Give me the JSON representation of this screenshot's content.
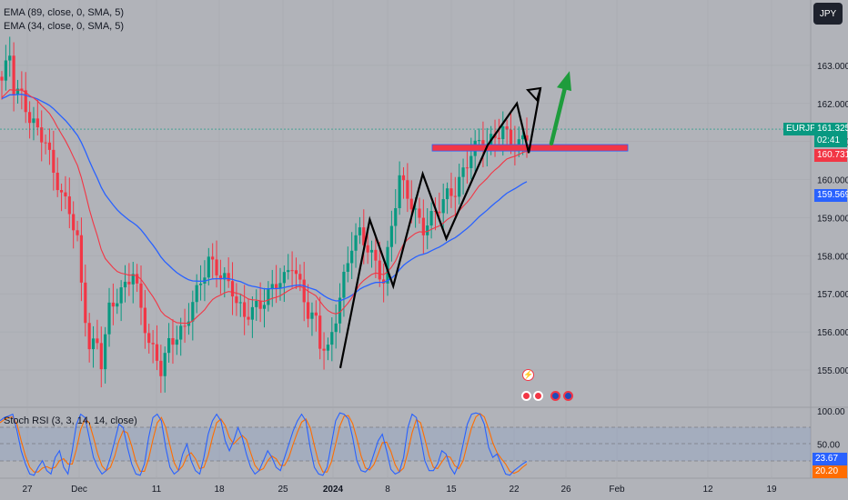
{
  "chart_data": {
    "type": "candlestick",
    "symbol": "EURJPY",
    "currency": "JPY",
    "indicators": {
      "ema_slow": {
        "label": "EMA (89, close, 0, SMA, 5)",
        "color": "#2962ff"
      },
      "ema_fast": {
        "label": "EMA (34, close, 0, SMA, 5)",
        "color": "#f23645"
      }
    },
    "price_axis": {
      "ticks": [
        "163.000",
        "162.000",
        "161.000",
        "160.000",
        "159.000",
        "158.000",
        "157.000",
        "156.000",
        "155.000"
      ],
      "range": [
        154.0,
        164.3
      ]
    },
    "time_axis": {
      "ticks": [
        "27",
        "Dec",
        "11",
        "18",
        "25",
        "2024",
        "8",
        "15",
        "22",
        "26",
        "Feb",
        "12",
        "19"
      ]
    },
    "price_labels": {
      "last": {
        "symbol": "EURJPY",
        "value": "161.325",
        "countdown": "02:41",
        "color": "#089981"
      },
      "ema_fast": {
        "value": "160.731",
        "color": "#f23645"
      },
      "ema_slow": {
        "value": "159.569",
        "color": "#2962ff"
      }
    },
    "resistance_zone": {
      "low": 160.75,
      "high": 160.92,
      "color": "#f23645"
    },
    "zigzag": [
      {
        "t": 0.0,
        "p": 155.05
      },
      {
        "t": 0.1,
        "p": 158.95
      },
      {
        "t": 0.18,
        "p": 157.2
      },
      {
        "t": 0.28,
        "p": 160.15
      },
      {
        "t": 0.36,
        "p": 158.45
      },
      {
        "t": 0.5,
        "p": 160.9
      },
      {
        "t": 0.6,
        "p": 162.0
      },
      {
        "t": 0.64,
        "p": 160.7
      },
      {
        "t": 0.68,
        "p": 162.4
      }
    ],
    "forecast_arrow": {
      "from": 160.95,
      "to": 162.85,
      "color": "#1e9c3c"
    },
    "candle_trend": [
      [
        0,
        162.6
      ],
      [
        2,
        163.3
      ],
      [
        3,
        162.4
      ],
      [
        5,
        162.2
      ],
      [
        7,
        161.6
      ],
      [
        9,
        161.3
      ],
      [
        11,
        161.0
      ],
      [
        13,
        160.2
      ],
      [
        15,
        159.6
      ],
      [
        17,
        159.2
      ],
      [
        19,
        158.4
      ],
      [
        20,
        157.2
      ],
      [
        22,
        155.6
      ],
      [
        24,
        155.7
      ],
      [
        25,
        155.2
      ],
      [
        27,
        156.6
      ],
      [
        29,
        156.9
      ],
      [
        31,
        157.2
      ],
      [
        33,
        157.6
      ],
      [
        35,
        156.6
      ],
      [
        37,
        155.7
      ],
      [
        39,
        155.3
      ],
      [
        40,
        155.0
      ],
      [
        42,
        155.7
      ],
      [
        44,
        155.9
      ],
      [
        46,
        156.1
      ],
      [
        48,
        156.8
      ],
      [
        50,
        157.3
      ],
      [
        52,
        157.9
      ],
      [
        54,
        157.6
      ],
      [
        56,
        157.4
      ],
      [
        58,
        157.1
      ],
      [
        59,
        156.8
      ],
      [
        61,
        156.4
      ],
      [
        63,
        156.6
      ],
      [
        65,
        156.7
      ],
      [
        67,
        157.0
      ],
      [
        69,
        157.3
      ],
      [
        71,
        157.4
      ],
      [
        73,
        157.8
      ],
      [
        75,
        157.2
      ],
      [
        77,
        156.5
      ],
      [
        79,
        156.3
      ],
      [
        80,
        155.7
      ],
      [
        82,
        155.5
      ],
      [
        84,
        156.4
      ],
      [
        86,
        157.4
      ],
      [
        88,
        158.3
      ],
      [
        90,
        158.6
      ],
      [
        92,
        158.2
      ],
      [
        94,
        157.8
      ],
      [
        96,
        157.3
      ],
      [
        98,
        158.8
      ],
      [
        100,
        160.05
      ],
      [
        102,
        159.6
      ],
      [
        104,
        159.1
      ],
      [
        106,
        158.7
      ],
      [
        108,
        159.0
      ],
      [
        110,
        159.3
      ],
      [
        112,
        159.6
      ],
      [
        114,
        159.7
      ],
      [
        116,
        160.2
      ],
      [
        118,
        160.7
      ],
      [
        120,
        161.0
      ],
      [
        122,
        160.9
      ],
      [
        124,
        161.15
      ],
      [
        126,
        161.3
      ],
      [
        128,
        161.05
      ],
      [
        130,
        160.9
      ],
      [
        131,
        161.1
      ],
      [
        132,
        161.2
      ]
    ],
    "stoch_rsi": {
      "label": "Stoch RSI (3, 3, 14, 14, close)",
      "k_color": "#2962ff",
      "d_color": "#ff6d00",
      "levels": [
        "100.00",
        "50.00"
      ],
      "k_value": "23.67",
      "d_value": "20.20",
      "band": [
        20,
        80
      ],
      "k": [
        85,
        90,
        92,
        95,
        70,
        40,
        20,
        5,
        3,
        15,
        25,
        10,
        5,
        30,
        40,
        15,
        5,
        40,
        80,
        95,
        90,
        60,
        30,
        15,
        5,
        10,
        30,
        55,
        80,
        75,
        45,
        20,
        5,
        3,
        20,
        60,
        90,
        95,
        85,
        45,
        15,
        5,
        10,
        35,
        50,
        25,
        10,
        5,
        30,
        65,
        85,
        95,
        85,
        55,
        40,
        55,
        75,
        60,
        35,
        15,
        5,
        10,
        25,
        40,
        30,
        15,
        10,
        30,
        50,
        70,
        85,
        95,
        85,
        45,
        15,
        5,
        3,
        15,
        50,
        85,
        97,
        95,
        88,
        60,
        25,
        10,
        8,
        15,
        35,
        55,
        65,
        40,
        12,
        5,
        8,
        30,
        75,
        95,
        90,
        60,
        25,
        10,
        10,
        20,
        40,
        35,
        15,
        5,
        20,
        50,
        80,
        95,
        97,
        95,
        80,
        45,
        30,
        35,
        20,
        5,
        3,
        10,
        15,
        20,
        24
      ],
      "d": [
        82,
        87,
        90,
        91,
        80,
        55,
        32,
        15,
        8,
        8,
        14,
        16,
        13,
        15,
        25,
        28,
        20,
        20,
        42,
        72,
        88,
        82,
        60,
        35,
        17,
        10,
        15,
        32,
        55,
        70,
        67,
        47,
        23,
        9,
        9,
        28,
        57,
        82,
        90,
        75,
        48,
        22,
        10,
        17,
        32,
        37,
        28,
        13,
        15,
        33,
        60,
        82,
        88,
        78,
        60,
        50,
        57,
        63,
        57,
        37,
        18,
        10,
        13,
        25,
        32,
        28,
        18,
        18,
        30,
        50,
        68,
        83,
        88,
        75,
        48,
        22,
        8,
        8,
        23,
        50,
        77,
        92,
        93,
        81,
        58,
        32,
        14,
        11,
        19,
        35,
        52,
        53,
        39,
        19,
        8,
        14,
        38,
        67,
        87,
        82,
        58,
        32,
        15,
        13,
        23,
        32,
        30,
        18,
        13,
        25,
        50,
        75,
        91,
        96,
        91,
        73,
        52,
        37,
        28,
        20,
        9,
        6,
        9,
        15,
        20
      ]
    },
    "event_markers": [
      "lightning",
      "flag-red",
      "flag-red",
      "flag-eu",
      "flag-eu"
    ]
  }
}
